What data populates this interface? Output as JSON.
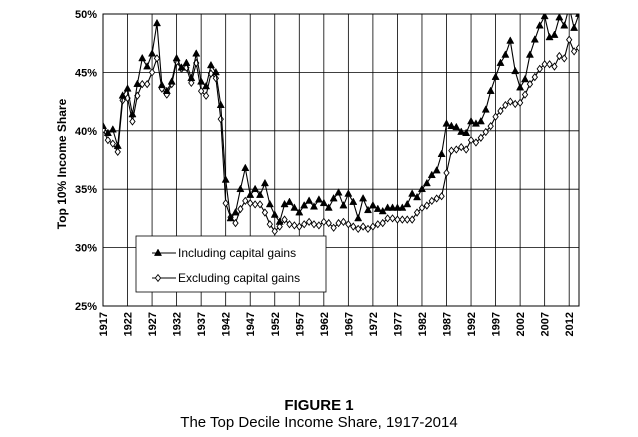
{
  "figure": {
    "label": "FIGURE 1",
    "caption": "The Top Decile Income Share, 1917-2014"
  },
  "chart_data": {
    "type": "line",
    "ylabel": "Top 10% Income Share",
    "xlabel": "",
    "ylim": [
      0.25,
      0.5
    ],
    "xlim": [
      1917,
      2014
    ],
    "y_ticks": [
      "25%",
      "30%",
      "35%",
      "40%",
      "45%",
      "50%"
    ],
    "x_ticks": [
      "1917",
      "1922",
      "1927",
      "1932",
      "1937",
      "1942",
      "1947",
      "1952",
      "1957",
      "1962",
      "1967",
      "1972",
      "1977",
      "1982",
      "1987",
      "1992",
      "1997",
      "2002",
      "2007",
      "2012"
    ],
    "grid": "horizontal and vertical",
    "legend_position": "bottom-left",
    "colors": {
      "line": "#000000",
      "grid": "#000000",
      "open_marker_fill": "#ffffff"
    },
    "x": [
      1917,
      1918,
      1919,
      1920,
      1921,
      1922,
      1923,
      1924,
      1925,
      1926,
      1927,
      1928,
      1929,
      1930,
      1931,
      1932,
      1933,
      1934,
      1935,
      1936,
      1937,
      1938,
      1939,
      1940,
      1941,
      1942,
      1943,
      1944,
      1945,
      1946,
      1947,
      1948,
      1949,
      1950,
      1951,
      1952,
      1953,
      1954,
      1955,
      1956,
      1957,
      1958,
      1959,
      1960,
      1961,
      1962,
      1963,
      1964,
      1965,
      1966,
      1967,
      1968,
      1969,
      1970,
      1971,
      1972,
      1973,
      1974,
      1975,
      1976,
      1977,
      1978,
      1979,
      1980,
      1981,
      1982,
      1983,
      1984,
      1985,
      1986,
      1987,
      1988,
      1989,
      1990,
      1991,
      1992,
      1993,
      1994,
      1995,
      1996,
      1997,
      1998,
      1999,
      2000,
      2001,
      2002,
      2003,
      2004,
      2005,
      2006,
      2007,
      2008,
      2009,
      2010,
      2011,
      2012,
      2013,
      2014
    ],
    "series": [
      {
        "name": "Including capital gains",
        "marker": "filled-triangle",
        "values": [
          0.404,
          0.398,
          0.401,
          0.387,
          0.43,
          0.436,
          0.414,
          0.44,
          0.462,
          0.455,
          0.466,
          0.492,
          0.439,
          0.434,
          0.442,
          0.462,
          0.454,
          0.458,
          0.445,
          0.466,
          0.442,
          0.438,
          0.456,
          0.45,
          0.422,
          0.358,
          0.325,
          0.33,
          0.35,
          0.368,
          0.345,
          0.35,
          0.345,
          0.355,
          0.337,
          0.328,
          0.322,
          0.337,
          0.339,
          0.334,
          0.33,
          0.336,
          0.34,
          0.335,
          0.341,
          0.338,
          0.334,
          0.342,
          0.347,
          0.336,
          0.346,
          0.339,
          0.325,
          0.342,
          0.332,
          0.336,
          0.333,
          0.331,
          0.334,
          0.334,
          0.334,
          0.334,
          0.337,
          0.346,
          0.343,
          0.35,
          0.355,
          0.362,
          0.366,
          0.38,
          0.406,
          0.404,
          0.403,
          0.399,
          0.398,
          0.408,
          0.406,
          0.408,
          0.418,
          0.434,
          0.446,
          0.458,
          0.465,
          0.477,
          0.451,
          0.437,
          0.444,
          0.465,
          0.478,
          0.49,
          0.498,
          0.48,
          0.482,
          0.497,
          0.49,
          0.506,
          0.488,
          0.5
        ]
      },
      {
        "name": "Excluding capital gains",
        "marker": "open-diamond",
        "values": [
          0.401,
          0.392,
          0.389,
          0.382,
          0.426,
          0.428,
          0.408,
          0.43,
          0.44,
          0.44,
          0.45,
          0.462,
          0.436,
          0.431,
          0.44,
          0.459,
          0.453,
          0.454,
          0.441,
          0.458,
          0.434,
          0.43,
          0.449,
          0.445,
          0.41,
          0.338,
          0.326,
          0.321,
          0.333,
          0.34,
          0.338,
          0.337,
          0.337,
          0.33,
          0.32,
          0.314,
          0.318,
          0.324,
          0.32,
          0.319,
          0.318,
          0.32,
          0.322,
          0.32,
          0.319,
          0.322,
          0.321,
          0.317,
          0.321,
          0.322,
          0.32,
          0.318,
          0.316,
          0.318,
          0.316,
          0.318,
          0.32,
          0.321,
          0.325,
          0.325,
          0.324,
          0.324,
          0.324,
          0.324,
          0.33,
          0.334,
          0.336,
          0.34,
          0.342,
          0.344,
          0.364,
          0.383,
          0.384,
          0.386,
          0.384,
          0.392,
          0.39,
          0.394,
          0.399,
          0.404,
          0.412,
          0.417,
          0.422,
          0.425,
          0.423,
          0.424,
          0.431,
          0.44,
          0.446,
          0.453,
          0.457,
          0.457,
          0.455,
          0.464,
          0.462,
          0.478,
          0.468,
          0.471
        ]
      }
    ]
  }
}
